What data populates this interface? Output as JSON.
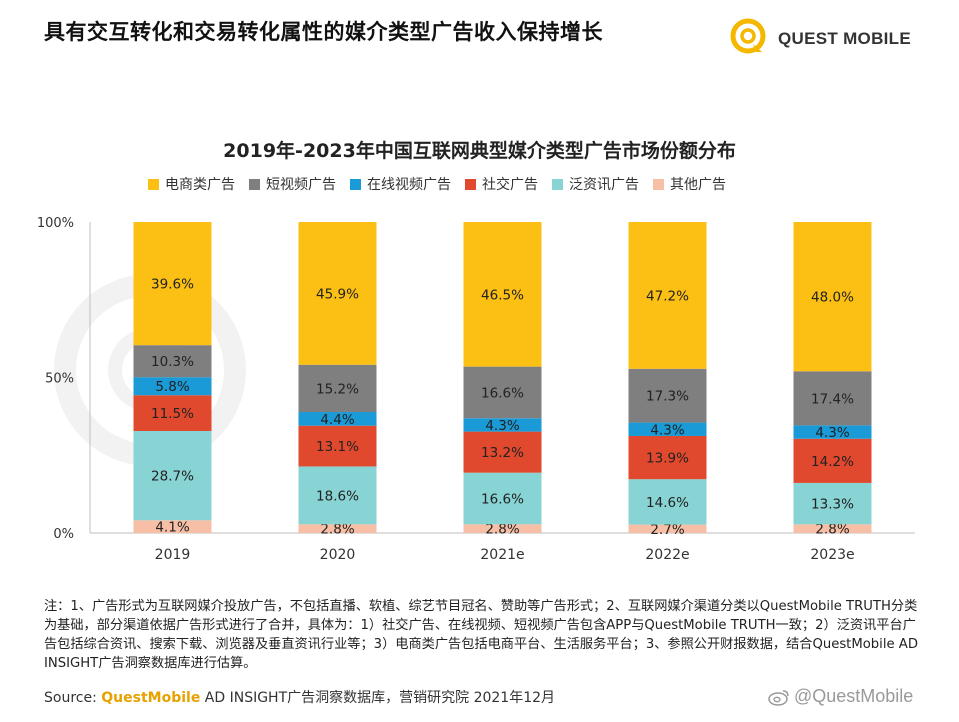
{
  "page": {
    "title": "具有交互转化和交易转化属性的媒介类型广告收入保持增长",
    "logo_text": "QUEST MOBILE",
    "notes": "注：1、广告形式为互联网媒介投放广告，不包括直播、软植、综艺节目冠名、赞助等广告形式；2、互联网媒介渠道分类以QuestMobile TRUTH分类为基础，部分渠道依据广告形式进行了合并，具体为：1）社交广告、在线视频、短视频广告包含APP与QuestMobile TRUTH一致；2）泛资讯平台广告包括综合资讯、搜索下载、浏览器及垂直资讯行业等；3）电商类广告包括电商平台、生活服务平台；3、参照公开财报数据，结合QuestMobile AD INSIGHT广告洞察数据库进行估算。",
    "source_label": "Source:",
    "source_brand": "QuestMobile",
    "source_rest": " AD INSIGHT广告洞察数据库，营销研究院 2021年12月",
    "weibo_handle": "@QuestMobile",
    "brand_color": "#f5b800"
  },
  "chart_data": {
    "type": "bar",
    "stacked": true,
    "title": "2019年-2023年中国互联网典型媒介类型广告市场份额分布",
    "categories": [
      "2019",
      "2020",
      "2021e",
      "2022e",
      "2023e"
    ],
    "yticks": [
      "0%",
      "50%",
      "100%"
    ],
    "ylim": [
      0,
      100
    ],
    "legend_position": "top",
    "grid": false,
    "series": [
      {
        "name": "其他广告",
        "color": "#f7bfa5",
        "values": [
          4.1,
          2.8,
          2.8,
          2.7,
          2.8
        ],
        "labels": [
          "4.1%",
          "2.8%",
          "2.8%",
          "2.7%",
          "2.8%"
        ]
      },
      {
        "name": "泛资讯广告",
        "color": "#88d3d3",
        "values": [
          28.7,
          18.6,
          16.6,
          14.6,
          13.3
        ],
        "labels": [
          "28.7%",
          "18.6%",
          "16.6%",
          "14.6%",
          "13.3%"
        ]
      },
      {
        "name": "社交广告",
        "color": "#e0492d",
        "values": [
          11.5,
          13.1,
          13.2,
          13.9,
          14.2
        ],
        "labels": [
          "11.5%",
          "13.1%",
          "13.2%",
          "13.9%",
          "14.2%"
        ]
      },
      {
        "name": "在线视频广告",
        "color": "#1a9ad6",
        "values": [
          5.8,
          4.4,
          4.3,
          4.3,
          4.3
        ],
        "labels": [
          "5.8%",
          "4.4%",
          "4.3%",
          "4.3%",
          "4.3%"
        ]
      },
      {
        "name": "短视频广告",
        "color": "#7f7f7f",
        "values": [
          10.3,
          15.2,
          16.6,
          17.3,
          17.4
        ],
        "labels": [
          "10.3%",
          "15.2%",
          "16.6%",
          "17.3%",
          "17.4%"
        ]
      },
      {
        "name": "电商类广告",
        "color": "#fcbf14",
        "values": [
          39.6,
          45.9,
          46.5,
          47.2,
          48.0
        ],
        "labels": [
          "39.6%",
          "45.9%",
          "46.5%",
          "47.2%",
          "48.0%"
        ]
      }
    ],
    "legend_order": [
      "电商类广告",
      "短视频广告",
      "在线视频广告",
      "社交广告",
      "泛资讯广告",
      "其他广告"
    ]
  }
}
